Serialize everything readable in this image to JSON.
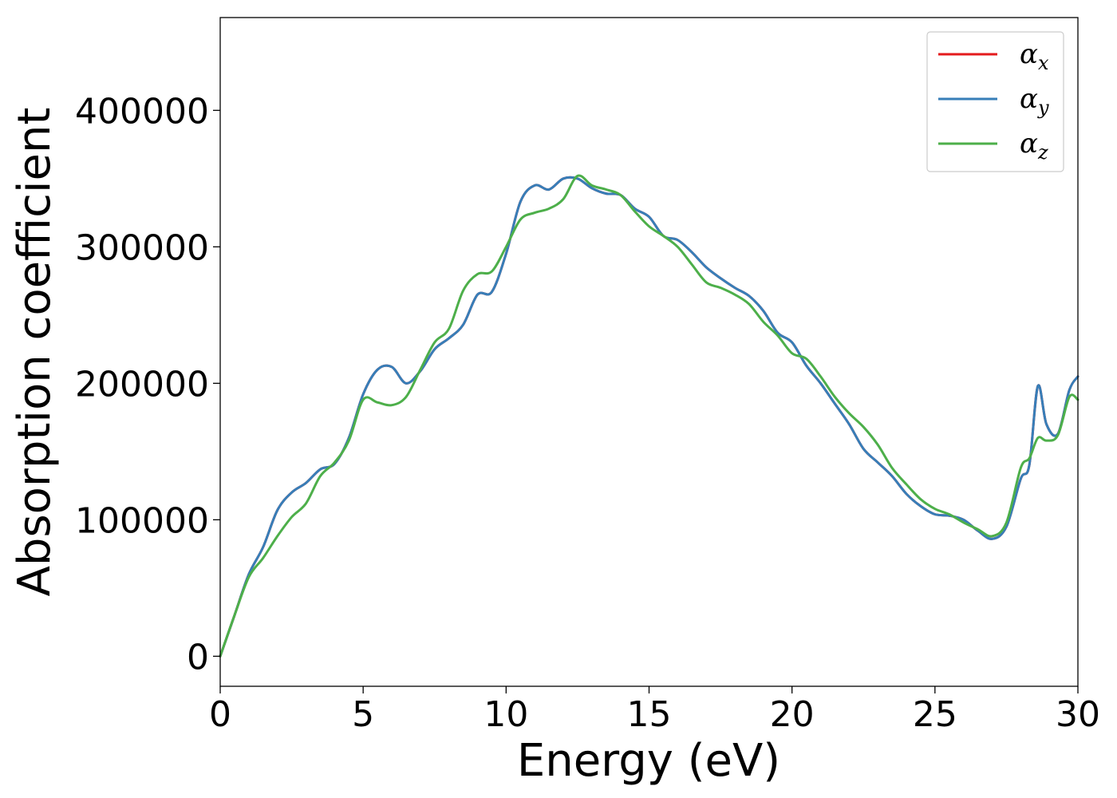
{
  "chart_data": {
    "type": "line",
    "title": "",
    "xlabel": "Energy (eV)",
    "ylabel": "Absorption coefficient",
    "xlim": [
      0,
      30
    ],
    "ylim": [
      -22000,
      468000
    ],
    "xticks": [
      0,
      5,
      10,
      15,
      20,
      25,
      30
    ],
    "xtick_labels": [
      "0",
      "5",
      "10",
      "15",
      "20",
      "25",
      "30"
    ],
    "yticks": [
      0,
      100000,
      200000,
      300000,
      400000
    ],
    "ytick_labels": [
      "0",
      "100000",
      "200000",
      "300000",
      "400000"
    ],
    "grid": false,
    "legend_position": "top-right",
    "series": [
      {
        "name_base": "α",
        "name_sub": "x",
        "color": "#e41a1c",
        "x": [
          0,
          0.5,
          1,
          1.5,
          2,
          2.5,
          3,
          3.5,
          4,
          4.5,
          5,
          5.5,
          6,
          6.5,
          7,
          7.5,
          8,
          8.5,
          9,
          9.5,
          10,
          10.5,
          11,
          11.5,
          12,
          12.5,
          13,
          13.5,
          14,
          14.5,
          15,
          15.5,
          16,
          16.5,
          17,
          17.5,
          18,
          18.5,
          19,
          19.5,
          20,
          20.5,
          21,
          21.5,
          22,
          22.5,
          23,
          23.5,
          24,
          24.5,
          25,
          25.5,
          26,
          26.5,
          27,
          27.5,
          28,
          28.3,
          28.6,
          28.9,
          29.3,
          29.7,
          30
        ],
        "y": [
          0,
          30000,
          60000,
          80000,
          107000,
          120000,
          127000,
          137000,
          141000,
          160000,
          192000,
          210000,
          212000,
          200000,
          209000,
          225000,
          233000,
          243000,
          265000,
          267000,
          295000,
          333000,
          345000,
          342000,
          350000,
          350000,
          343000,
          339000,
          338000,
          328000,
          322000,
          308000,
          305000,
          296000,
          285000,
          277000,
          270000,
          264000,
          253000,
          237000,
          230000,
          213000,
          200000,
          185000,
          170000,
          152000,
          142000,
          132000,
          119000,
          110000,
          104000,
          103000,
          100000,
          92000,
          86000,
          95000,
          130000,
          140000,
          198000,
          170000,
          163000,
          195000,
          205000
        ]
      },
      {
        "name_base": "α",
        "name_sub": "y",
        "color": "#377eb8",
        "x": [
          0,
          0.5,
          1,
          1.5,
          2,
          2.5,
          3,
          3.5,
          4,
          4.5,
          5,
          5.5,
          6,
          6.5,
          7,
          7.5,
          8,
          8.5,
          9,
          9.5,
          10,
          10.5,
          11,
          11.5,
          12,
          12.5,
          13,
          13.5,
          14,
          14.5,
          15,
          15.5,
          16,
          16.5,
          17,
          17.5,
          18,
          18.5,
          19,
          19.5,
          20,
          20.5,
          21,
          21.5,
          22,
          22.5,
          23,
          23.5,
          24,
          24.5,
          25,
          25.5,
          26,
          26.5,
          27,
          27.5,
          28,
          28.3,
          28.6,
          28.9,
          29.3,
          29.7,
          30
        ],
        "y": [
          0,
          30000,
          60000,
          80000,
          107000,
          120000,
          127000,
          137000,
          141000,
          160000,
          192000,
          210000,
          212000,
          200000,
          209000,
          225000,
          233000,
          243000,
          265000,
          267000,
          295000,
          333000,
          345000,
          342000,
          350000,
          350000,
          343000,
          339000,
          338000,
          328000,
          322000,
          308000,
          305000,
          296000,
          285000,
          277000,
          270000,
          264000,
          253000,
          237000,
          230000,
          213000,
          200000,
          185000,
          170000,
          152000,
          142000,
          132000,
          119000,
          110000,
          104000,
          103000,
          100000,
          92000,
          86000,
          95000,
          130000,
          140000,
          198000,
          170000,
          163000,
          195000,
          205000
        ]
      },
      {
        "name_base": "α",
        "name_sub": "z",
        "color": "#4daf4a",
        "x": [
          0,
          0.5,
          1,
          1.5,
          2,
          2.5,
          3,
          3.5,
          4,
          4.5,
          5,
          5.5,
          6,
          6.5,
          7,
          7.5,
          8,
          8.5,
          9,
          9.5,
          10,
          10.5,
          11,
          11.5,
          12,
          12.5,
          13,
          13.5,
          14,
          14.5,
          15,
          15.5,
          16,
          16.5,
          17,
          17.5,
          18,
          18.5,
          19,
          19.5,
          20,
          20.5,
          21,
          21.5,
          22,
          22.5,
          23,
          23.5,
          24,
          24.5,
          25,
          25.5,
          26,
          26.5,
          27,
          27.5,
          28,
          28.3,
          28.6,
          28.9,
          29.3,
          29.7,
          30
        ],
        "y": [
          0,
          30000,
          58000,
          72000,
          88000,
          102000,
          112000,
          132000,
          142000,
          158000,
          188000,
          186000,
          184000,
          190000,
          210000,
          230000,
          240000,
          268000,
          280000,
          282000,
          300000,
          320000,
          325000,
          328000,
          335000,
          352000,
          345000,
          342000,
          338000,
          326000,
          315000,
          308000,
          300000,
          287000,
          274000,
          270000,
          265000,
          258000,
          245000,
          235000,
          222000,
          218000,
          205000,
          190000,
          178000,
          168000,
          155000,
          138000,
          126000,
          115000,
          108000,
          104000,
          98000,
          93000,
          88000,
          98000,
          138000,
          145000,
          160000,
          158000,
          162000,
          190000,
          188000
        ]
      }
    ]
  }
}
